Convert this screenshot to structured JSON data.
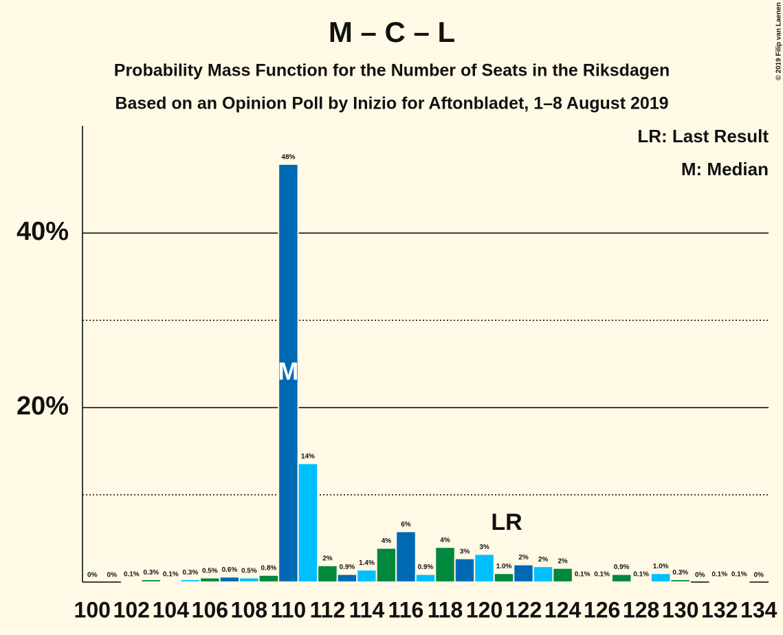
{
  "chart_data": {
    "type": "bar",
    "title": "M – C – L",
    "subtitle": "Probability Mass Function for the Number of Seats in the Riksdagen",
    "subtitle2": "Based on an Opinion Poll by Inizio for Aftonbladet, 1–8 August 2019",
    "copyright": "© 2019 Filip van Laenen",
    "legend": [
      "LR: Last Result",
      "M: Median"
    ],
    "x": [
      100,
      101,
      102,
      103,
      104,
      105,
      106,
      107,
      108,
      109,
      110,
      111,
      112,
      113,
      114,
      115,
      116,
      117,
      118,
      119,
      120,
      121,
      122,
      123,
      124,
      125,
      126,
      127,
      128,
      129,
      130,
      131,
      132,
      133,
      134
    ],
    "values": [
      0,
      0,
      0.1,
      0.3,
      0.1,
      0.3,
      0.5,
      0.6,
      0.5,
      0.8,
      47.9,
      13.6,
      1.9,
      0.9,
      1.4,
      3.9,
      5.8,
      0.9,
      4.0,
      2.7,
      3.2,
      1.0,
      2.0,
      1.8,
      1.6,
      0.1,
      0.1,
      0.9,
      0.1,
      1.0,
      0.3,
      0,
      0.1,
      0.1,
      0
    ],
    "value_labels": [
      "0%",
      "0%",
      "0.1%",
      "0.3%",
      "0.1%",
      "0.3%",
      "0.5%",
      "0.6%",
      "0.5%",
      "0.8%",
      "48%",
      "14%",
      "2%",
      "0.9%",
      "1.4%",
      "4%",
      "6%",
      "0.9%",
      "4%",
      "3%",
      "3%",
      "1.0%",
      "2%",
      "2%",
      "2%",
      "0.1%",
      "0.1%",
      "0.9%",
      "0.1%",
      "1.0%",
      "0.3%",
      "0%",
      "0.1%",
      "0.1%",
      "0%"
    ],
    "colors": [
      "#00883d",
      "#0069b4",
      "#00bfff"
    ],
    "xlim": [
      99.5,
      134.5
    ],
    "xticks": [
      100,
      102,
      104,
      106,
      108,
      110,
      112,
      114,
      116,
      118,
      120,
      122,
      124,
      126,
      128,
      130,
      132,
      134
    ],
    "ylim": [
      0,
      52.3
    ],
    "yticks": [
      {
        "value": 20,
        "label": "20%"
      },
      {
        "value": 40,
        "label": "40%"
      }
    ],
    "minor_yticks": [
      10,
      30
    ],
    "annotations": [
      {
        "text": "M",
        "x": 110
      },
      {
        "text": "LR",
        "x": 121
      }
    ]
  }
}
